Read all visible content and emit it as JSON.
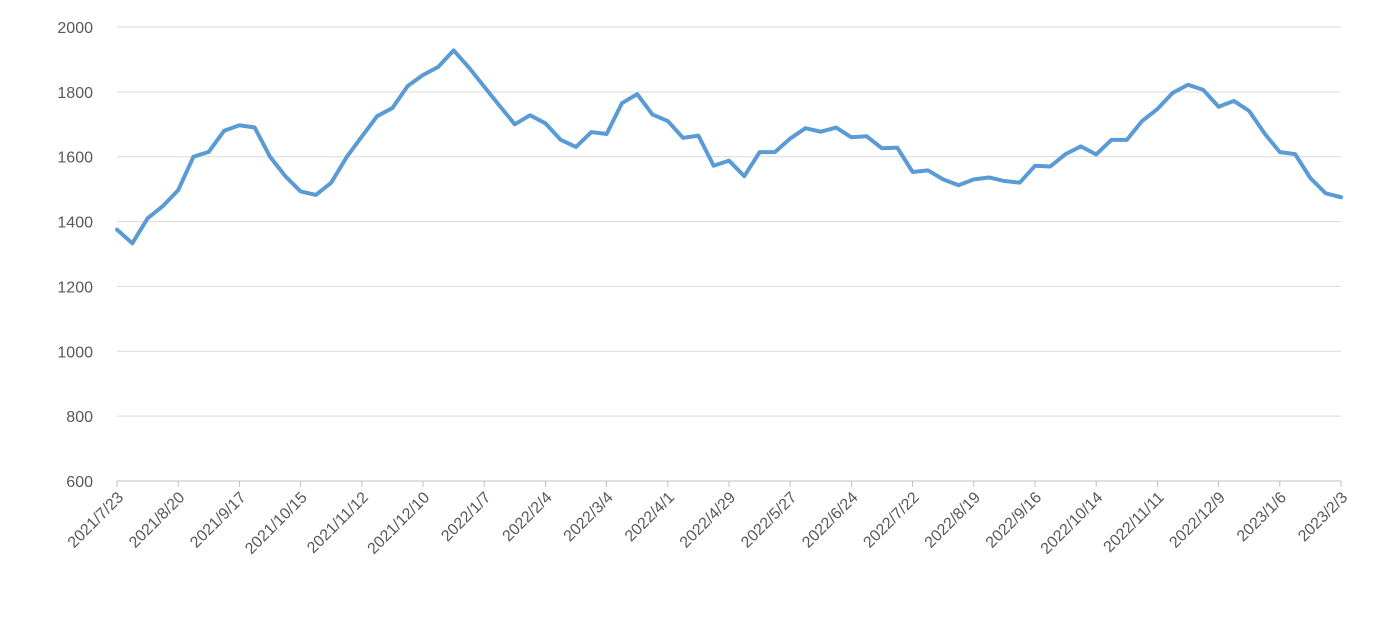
{
  "chart_data": {
    "type": "line",
    "title": "",
    "xlabel": "",
    "ylabel": "",
    "ylim": [
      600,
      2000
    ],
    "y_ticks": [
      600,
      800,
      1000,
      1200,
      1400,
      1600,
      1800,
      2000
    ],
    "grid": "horizontal",
    "legend": "none",
    "x_tick_labels": [
      "2021/7/23",
      "2021/8/20",
      "2021/9/17",
      "2021/10/15",
      "2021/11/12",
      "2021/12/10",
      "2022/1/7",
      "2022/2/4",
      "2022/3/4",
      "2022/4/1",
      "2022/4/29",
      "2022/5/27",
      "2022/6/24",
      "2022/7/22",
      "2022/8/19",
      "2022/9/16",
      "2022/10/14",
      "2022/11/11",
      "2022/12/9",
      "2023/1/6",
      "2023/2/3"
    ],
    "series": [
      {
        "color": "#5B9BD5",
        "x": [
          "2021/7/23",
          "2021/7/30",
          "2021/8/6",
          "2021/8/13",
          "2021/8/20",
          "2021/8/27",
          "2021/9/3",
          "2021/9/10",
          "2021/9/17",
          "2021/9/24",
          "2021/10/1",
          "2021/10/8",
          "2021/10/15",
          "2021/10/22",
          "2021/10/29",
          "2021/11/5",
          "2021/11/12",
          "2021/11/19",
          "2021/11/26",
          "2021/12/3",
          "2021/12/10",
          "2021/12/17",
          "2021/12/24",
          "2021/12/31",
          "2022/1/7",
          "2022/1/14",
          "2022/1/21",
          "2022/1/28",
          "2022/2/4",
          "2022/2/11",
          "2022/2/18",
          "2022/2/25",
          "2022/3/4",
          "2022/3/11",
          "2022/3/18",
          "2022/3/25",
          "2022/4/1",
          "2022/4/8",
          "2022/4/15",
          "2022/4/22",
          "2022/4/29",
          "2022/5/6",
          "2022/5/13",
          "2022/5/20",
          "2022/5/27",
          "2022/6/3",
          "2022/6/10",
          "2022/6/17",
          "2022/6/24",
          "2022/7/1",
          "2022/7/8",
          "2022/7/15",
          "2022/7/22",
          "2022/7/29",
          "2022/8/5",
          "2022/8/12",
          "2022/8/19",
          "2022/8/26",
          "2022/9/2",
          "2022/9/9",
          "2022/9/16",
          "2022/9/23",
          "2022/9/30",
          "2022/10/7",
          "2022/10/14",
          "2022/10/21",
          "2022/10/28",
          "2022/11/4",
          "2022/11/11",
          "2022/11/18",
          "2022/11/25",
          "2022/12/2",
          "2022/12/9",
          "2022/12/16",
          "2022/12/23",
          "2022/12/30",
          "2023/1/6",
          "2023/1/13",
          "2023/1/20",
          "2023/1/27",
          "2023/2/3"
        ],
        "values": [
          1375,
          1333,
          1410,
          1448,
          1497,
          1600,
          1615,
          1680,
          1697,
          1690,
          1600,
          1540,
          1493,
          1482,
          1520,
          1598,
          1662,
          1725,
          1750,
          1818,
          1852,
          1877,
          1928,
          1875,
          1816,
          1757,
          1700,
          1728,
          1703,
          1652,
          1630,
          1676,
          1670,
          1765,
          1793,
          1730,
          1710,
          1658,
          1665,
          1572,
          1588,
          1540,
          1614,
          1614,
          1656,
          1688,
          1677,
          1690,
          1660,
          1663,
          1626,
          1628,
          1553,
          1558,
          1530,
          1512,
          1530,
          1536,
          1525,
          1520,
          1572,
          1570,
          1608,
          1632,
          1607,
          1652,
          1652,
          1710,
          1747,
          1797,
          1822,
          1806,
          1754,
          1772,
          1741,
          1672,
          1614,
          1608,
          1534,
          1487,
          1475
        ]
      }
    ]
  }
}
